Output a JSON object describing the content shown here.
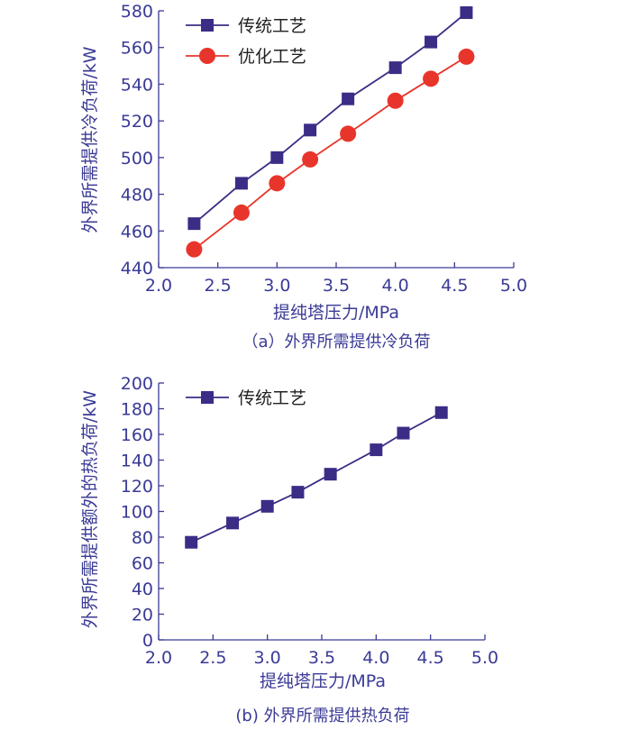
{
  "chart_data": [
    {
      "type": "line",
      "caption": "（a）外界所需提供冷负荷",
      "xlabel": "提纯塔压力/MPa",
      "ylabel": "外界所需提供冷负荷/kW",
      "xlim": [
        2.0,
        5.0
      ],
      "ylim": [
        440,
        580
      ],
      "xticks": [
        "2.0",
        "2.5",
        "3.0",
        "3.5",
        "4.0",
        "4.5",
        "5.0"
      ],
      "yticks": [
        "440",
        "460",
        "480",
        "500",
        "520",
        "540",
        "560",
        "580"
      ],
      "x": [
        2.3,
        2.7,
        3.0,
        3.28,
        3.6,
        4.0,
        4.3,
        4.6
      ],
      "series": [
        {
          "name": "传统工艺",
          "color": "#3b2c86",
          "marker": "square",
          "values": [
            464,
            486,
            500,
            515,
            532,
            549,
            563,
            579
          ]
        },
        {
          "name": "优化工艺",
          "color": "#e8352b",
          "marker": "circle",
          "values": [
            450,
            470,
            486,
            499,
            513,
            531,
            543,
            555
          ]
        }
      ],
      "grid": false,
      "legend": "top-left"
    },
    {
      "type": "line",
      "caption": "(b)  外界所需提供热负荷",
      "xlabel": "提纯塔压力/MPa",
      "ylabel": "外界所需提供额外的热负荷/kW",
      "xlim": [
        2.0,
        5.0
      ],
      "ylim": [
        0,
        200
      ],
      "xticks": [
        "2.0",
        "2.5",
        "3.0",
        "3.5",
        "4.0",
        "4.5",
        "5.0"
      ],
      "yticks": [
        "0",
        "20",
        "40",
        "60",
        "80",
        "100",
        "120",
        "140",
        "160",
        "180",
        "200"
      ],
      "x": [
        2.3,
        2.68,
        3.0,
        3.28,
        3.58,
        4.0,
        4.25,
        4.6
      ],
      "series": [
        {
          "name": "传统工艺",
          "color": "#3b2c86",
          "marker": "square",
          "values": [
            76,
            91,
            104,
            115,
            129,
            148,
            161,
            177
          ]
        }
      ],
      "grid": false,
      "legend": "top-left"
    }
  ]
}
